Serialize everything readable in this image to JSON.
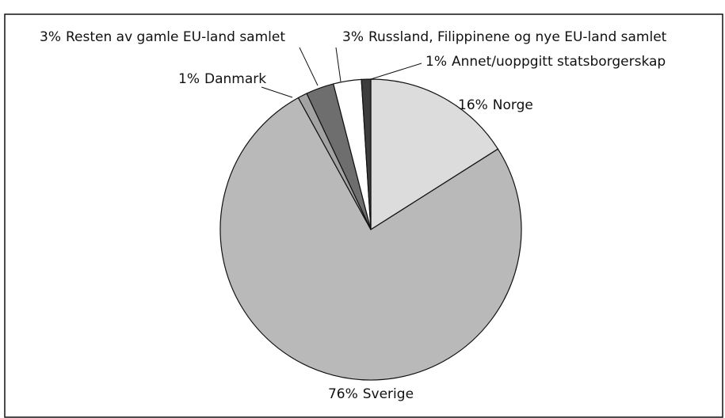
{
  "chart_data": {
    "type": "pie",
    "categories": [
      "Norge",
      "Sverige",
      "Danmark",
      "Resten av gamle EU-land samlet",
      "Russland, Filippinene og nye EU-land samlet",
      "Annet/uoppgitt statsborgerskap"
    ],
    "values": [
      16,
      76,
      1,
      3,
      3,
      1
    ],
    "value_labels": [
      "16%",
      "76%",
      "1%",
      "3%",
      "3%",
      "1%"
    ],
    "colors": [
      "#dcdcdc",
      "#b9b9b9",
      "#a3a3a3",
      "#6e6e6e",
      "#ffffff",
      "#3c3c3c"
    ]
  }
}
